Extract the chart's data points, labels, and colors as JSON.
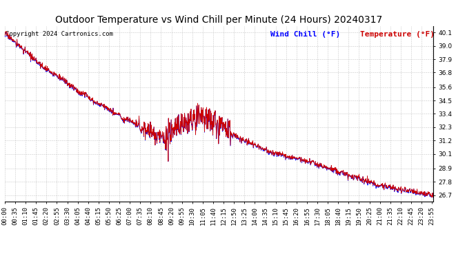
{
  "title": "Outdoor Temperature vs Wind Chill per Minute (24 Hours) 20240317",
  "copyright_text": "Copyright 2024 Cartronics.com",
  "wind_chill_label": "Wind Chill (°F)",
  "temp_label": "Temperature (°F)",
  "wind_chill_color": "#0000ff",
  "temp_color": "#cc0000",
  "background_color": "#ffffff",
  "grid_color": "#bbbbbb",
  "title_color": "#000000",
  "yticks": [
    40.1,
    39.0,
    37.9,
    36.8,
    35.6,
    34.5,
    33.4,
    32.3,
    31.2,
    30.1,
    28.9,
    27.8,
    26.7
  ],
  "ymin": 26.2,
  "ymax": 40.65,
  "n_minutes": 1440,
  "title_fontsize": 10,
  "copyright_fontsize": 6.5,
  "legend_fontsize": 8,
  "tick_fontsize": 6.5,
  "breakpoints": [
    0,
    120,
    300,
    480,
    540,
    600,
    660,
    720,
    780,
    900,
    1020,
    1140,
    1260,
    1440
  ],
  "values": [
    40.1,
    37.5,
    34.5,
    32.0,
    31.3,
    32.5,
    33.2,
    32.5,
    31.5,
    30.2,
    29.5,
    28.5,
    27.5,
    26.7
  ]
}
